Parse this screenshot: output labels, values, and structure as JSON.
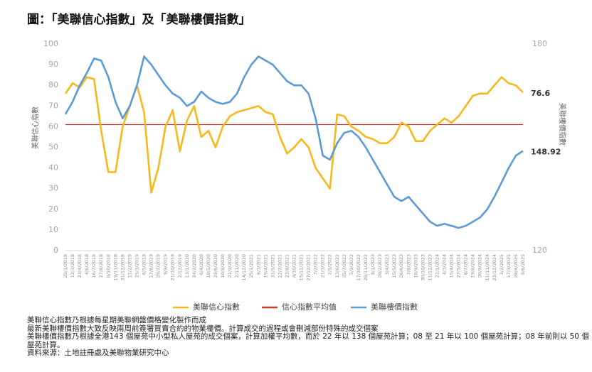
{
  "chart_data": {
    "type": "line",
    "title": "圖：「美聯信心指數」及「美聯樓價指數」",
    "y_label": "美聯信心指數",
    "y2_label": "美聯樓價指數",
    "categories": [
      "29/1/2018",
      "12/3/2018",
      "23/4/2018",
      "4/6/2018",
      "16/7/2018",
      "27/8/2018",
      "8/10/2018",
      "19/11/2018",
      "31/12/2018",
      "11/2/2019",
      "25/3/2019",
      "6/5/2019",
      "17/6/2019",
      "29/7/2019",
      "9/9/2019",
      "21/10/2019",
      "2/12/2019",
      "13/1/2020",
      "24/2/2020",
      "6/4/2020",
      "18/5/2020",
      "29/6/2020",
      "10/8/2020",
      "21/9/2020",
      "2/11/2020",
      "14/12/2020",
      "25/1/2021",
      "8/3/2021",
      "19/4/2021",
      "31/5/2021",
      "12/7/2021",
      "23/8/2021",
      "4/10/2021",
      "15/11/2021",
      "27/12/2021",
      "7/2/2022",
      "21/3/2022",
      "2/5/2022",
      "13/6/2022",
      "25/7/2022",
      "5/9/2022",
      "17/10/2022",
      "28/11/2022",
      "9/1/2023",
      "20/2/2023",
      "3/4/2023",
      "15/5/2023",
      "26/6/2023",
      "7/8/2023",
      "18/9/2023",
      "30/10/2023",
      "11/12/2023",
      "22/1/2024",
      "4/3/2024",
      "15/4/2024",
      "27/5/2024",
      "8/7/2024",
      "19/8/2024",
      "30/9/2024",
      "11/11/2024",
      "23/12/2024",
      "3/2/2025",
      "17/3/2025",
      "28/4/2025",
      "9/6/2025"
    ],
    "series": [
      {
        "name": "美聯信心指數",
        "color": "#f5b91e",
        "axis": "y",
        "values": [
          76,
          81,
          79,
          84,
          83,
          58,
          38,
          38,
          60,
          70,
          80,
          67,
          28,
          40,
          60,
          68,
          48,
          63,
          70,
          55,
          58,
          50,
          60,
          65,
          67,
          68,
          69,
          70,
          67,
          66,
          55,
          47,
          50,
          54,
          50,
          40,
          35,
          30,
          66,
          65,
          60,
          58,
          55,
          54,
          52,
          52,
          55,
          62,
          60,
          53,
          53,
          58,
          61,
          64,
          62,
          65,
          70,
          75,
          76,
          76,
          80,
          84,
          81,
          80,
          76.6
        ]
      },
      {
        "name": "美聯樓價指數",
        "color": "#5b9bd5",
        "axis": "y2",
        "values": [
          159.6,
          163.2,
          168,
          171.6,
          175.8,
          175.2,
          170.4,
          163.2,
          158.4,
          162,
          168,
          176.4,
          174,
          171,
          168,
          165.6,
          164.4,
          162,
          163.2,
          166.2,
          164.4,
          163.2,
          162.6,
          163.2,
          165.6,
          170.4,
          174,
          176.4,
          175.2,
          174,
          171.6,
          169.2,
          168,
          168,
          165.6,
          158.4,
          147.6,
          146.4,
          151.2,
          154.2,
          154.8,
          153,
          150,
          146.4,
          142.8,
          139.2,
          135.6,
          134.4,
          135.6,
          133.2,
          130.8,
          128.4,
          127.2,
          127.8,
          127.2,
          126.6,
          127.2,
          128.4,
          129.6,
          132,
          135.6,
          139.8,
          144,
          147.6,
          148.92
        ]
      }
    ],
    "reference_line": {
      "name": "信心指數平均值",
      "value": 61,
      "color": "#c0392b"
    },
    "ylim": [
      0,
      100
    ],
    "yticks": [
      0,
      10,
      20,
      30,
      40,
      50,
      60,
      70,
      80,
      90,
      100
    ],
    "y2lim": [
      120,
      180
    ],
    "y2ticks": [
      120,
      180
    ],
    "notes": [
      "美聯信心指數乃根據每星期美聯網盤價格變化製作而成",
      "最新美聯樓價指數大致反映兩周前簽署買賣合約的物業樓價。計算成交的過程或會刪減部份特殊的成交個案",
      "美聯樓價指數乃根據全港143 個屋苑中小型私人屋苑的成交個案，計算加權平均數，而於 22 年以 138 個屋苑計算；08 至 21 年以 100 個屋苑計算；08 年前則以 50 個屋苑計算。",
      "資料來源：土地註冊處及美聯物業研究中心"
    ]
  }
}
